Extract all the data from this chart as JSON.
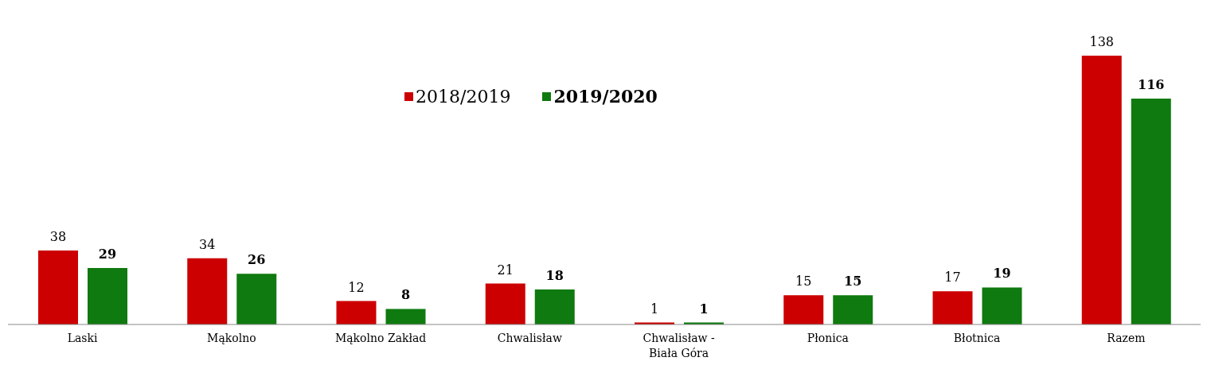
{
  "chart_data": {
    "type": "bar",
    "categories": [
      "Laski",
      "Mąkolno",
      "Mąkolno Zakład",
      "Chwalisław",
      "Chwalisław - Biała Góra",
      "Płonica",
      "Błotnica",
      "Razem"
    ],
    "series": [
      {
        "name": "2018/2019",
        "color": "#cc0000",
        "values": [
          38,
          34,
          12,
          21,
          1,
          15,
          17,
          138
        ]
      },
      {
        "name": "2019/2020",
        "color": "#0f7a0f",
        "values": [
          29,
          26,
          8,
          18,
          1,
          15,
          19,
          116
        ]
      }
    ],
    "data_labels": true,
    "legend": "top",
    "grid": false
  }
}
